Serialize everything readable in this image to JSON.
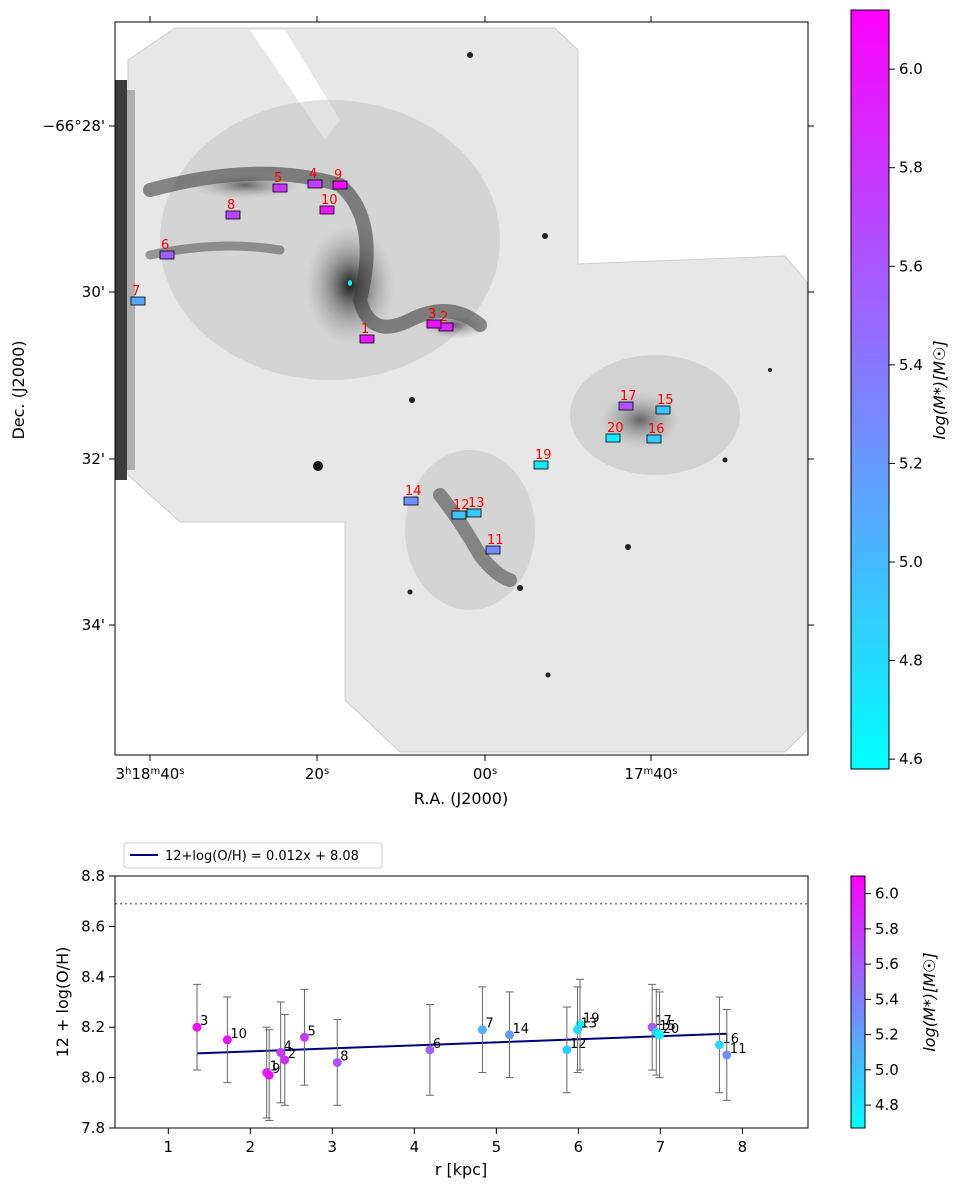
{
  "colors": {
    "cmap_low": "#00ffff",
    "cmap_high": "#ff00ff",
    "fit_line": "#00007f",
    "region_label": "#ff0000",
    "errorbar": "#666666",
    "ref_line": "#808080"
  },
  "chart_data": [
    {
      "type": "image",
      "xlabel": "R.A. (J2000)",
      "ylabel": "Dec. (J2000)",
      "x_ticklabels": [
        "3h18m40s",
        "20s",
        "00s",
        "17m40s"
      ],
      "y_ticklabels": [
        "−66°28'",
        "30'",
        "32'",
        "34'"
      ],
      "colorbar": {
        "label": "log(M*)[M☉]",
        "range": [
          4.58,
          6.12
        ],
        "ticks": [
          "4.6",
          "4.8",
          "5.0",
          "5.2",
          "5.4",
          "5.6",
          "5.8",
          "6.0"
        ]
      },
      "regions": [
        {
          "id": "1",
          "logM": 6.0
        },
        {
          "id": "2",
          "logM": 5.9
        },
        {
          "id": "3",
          "logM": 6.02
        },
        {
          "id": "4",
          "logM": 5.75
        },
        {
          "id": "5",
          "logM": 5.8
        },
        {
          "id": "6",
          "logM": 5.55
        },
        {
          "id": "7",
          "logM": 5.1
        },
        {
          "id": "8",
          "logM": 5.7
        },
        {
          "id": "9",
          "logM": 6.05
        },
        {
          "id": "10",
          "logM": 6.0
        },
        {
          "id": "11",
          "logM": 5.3
        },
        {
          "id": "12",
          "logM": 4.95
        },
        {
          "id": "13",
          "logM": 4.9
        },
        {
          "id": "14",
          "logM": 5.25
        },
        {
          "id": "15",
          "logM": 4.95
        },
        {
          "id": "16",
          "logM": 4.9
        },
        {
          "id": "17",
          "logM": 5.6
        },
        {
          "id": "19",
          "logM": 4.75
        },
        {
          "id": "20",
          "logM": 4.7
        }
      ]
    },
    {
      "type": "scatter",
      "xlabel": "r [kpc]",
      "ylabel": "12 + log(O/H)",
      "xlim": [
        0.35,
        8.8
      ],
      "ylim": [
        7.8,
        8.8
      ],
      "x_ticks": [
        "1",
        "2",
        "3",
        "4",
        "5",
        "6",
        "7",
        "8"
      ],
      "y_ticks": [
        "7.8",
        "8.0",
        "8.2",
        "8.4",
        "8.6",
        "8.8"
      ],
      "reference_line": {
        "y": 8.69,
        "style": "dotted"
      },
      "fit": {
        "label": "12+log(O/H) = 0.012x + 8.08",
        "x": [
          1.35,
          7.8
        ],
        "y": [
          8.096,
          8.174
        ]
      },
      "colorbar": {
        "label": "log(M*)[M☉]",
        "range": [
          4.67,
          6.1
        ],
        "ticks": [
          "4.8",
          "5.0",
          "5.2",
          "5.4",
          "5.6",
          "5.8",
          "6.0"
        ]
      },
      "points": [
        {
          "id": "3",
          "r": 1.35,
          "oh": 8.2,
          "err": 0.17,
          "logM": 6.05
        },
        {
          "id": "10",
          "r": 1.72,
          "oh": 8.15,
          "err": 0.17,
          "logM": 6.0
        },
        {
          "id": "1",
          "r": 2.2,
          "oh": 8.02,
          "err": 0.18,
          "logM": 5.95
        },
        {
          "id": "9",
          "r": 2.23,
          "oh": 8.01,
          "err": 0.18,
          "logM": 6.05
        },
        {
          "id": "4",
          "r": 2.37,
          "oh": 8.1,
          "err": 0.2,
          "logM": 5.75
        },
        {
          "id": "2",
          "r": 2.42,
          "oh": 8.07,
          "err": 0.18,
          "logM": 5.85
        },
        {
          "id": "5",
          "r": 2.66,
          "oh": 8.16,
          "err": 0.19,
          "logM": 5.8
        },
        {
          "id": "8",
          "r": 3.06,
          "oh": 8.06,
          "err": 0.17,
          "logM": 5.65
        },
        {
          "id": "6",
          "r": 4.19,
          "oh": 8.11,
          "err": 0.18,
          "logM": 5.55
        },
        {
          "id": "7",
          "r": 4.83,
          "oh": 8.19,
          "err": 0.17,
          "logM": 5.1
        },
        {
          "id": "14",
          "r": 5.16,
          "oh": 8.17,
          "err": 0.17,
          "logM": 5.25
        },
        {
          "id": "12",
          "r": 5.86,
          "oh": 8.11,
          "err": 0.17,
          "logM": 4.95
        },
        {
          "id": "19",
          "r": 6.02,
          "oh": 8.21,
          "err": 0.18,
          "logM": 4.72
        },
        {
          "id": "13",
          "r": 5.99,
          "oh": 8.19,
          "err": 0.17,
          "logM": 4.9
        },
        {
          "id": "17",
          "r": 6.9,
          "oh": 8.2,
          "err": 0.17,
          "logM": 5.6
        },
        {
          "id": "15",
          "r": 6.95,
          "oh": 8.18,
          "err": 0.17,
          "logM": 4.95
        },
        {
          "id": "20",
          "r": 6.99,
          "oh": 8.17,
          "err": 0.17,
          "logM": 4.7
        },
        {
          "id": "16",
          "r": 7.72,
          "oh": 8.13,
          "err": 0.19,
          "logM": 4.9
        },
        {
          "id": "11",
          "r": 7.81,
          "oh": 8.09,
          "err": 0.18,
          "logM": 5.3
        }
      ]
    }
  ]
}
